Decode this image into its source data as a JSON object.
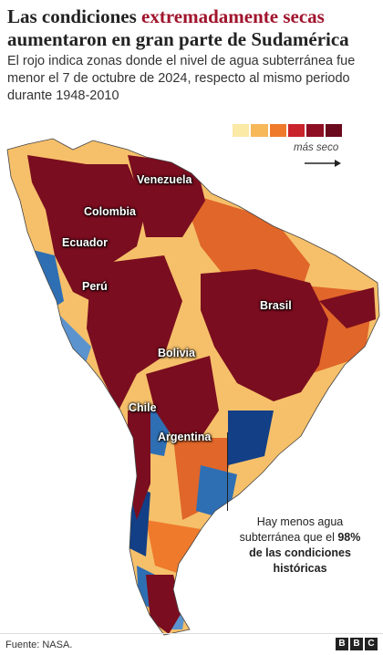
{
  "title": {
    "part1": "Las condiciones ",
    "highlight": "extremadamente secas",
    "part2": " aumentaron en gran parte de Sudamérica"
  },
  "subtitle": "El rojo indica zonas donde el nivel de agua subterránea fue menor el 7 de octubre de 2024, respecto al mismo periodo durante 1948-2010",
  "legend": {
    "colors": [
      "#fbe9a6",
      "#f7b85a",
      "#ef7a2c",
      "#c9242c",
      "#8e0f23",
      "#6b0a1c"
    ],
    "label": "más seco",
    "arrow_icon": "arrow-right-icon"
  },
  "map": {
    "countries": [
      "Venezuela",
      "Colombia",
      "Ecuador",
      "Perú",
      "Brasil",
      "Bolivia",
      "Chile",
      "Argentina"
    ],
    "colors": {
      "extreme_dry": "#7a0d1f",
      "dry": "#e0662a",
      "moderate": "#f6c06a",
      "wet": "#2e6fb4",
      "very_wet": "#123f85"
    }
  },
  "callout": {
    "line1": "Hay menos agua subterránea que el ",
    "bold1": "98%",
    "bold2": "de las condiciones históricas"
  },
  "footer": {
    "source": "Fuente: NASA.",
    "logo": [
      "B",
      "B",
      "C"
    ]
  }
}
